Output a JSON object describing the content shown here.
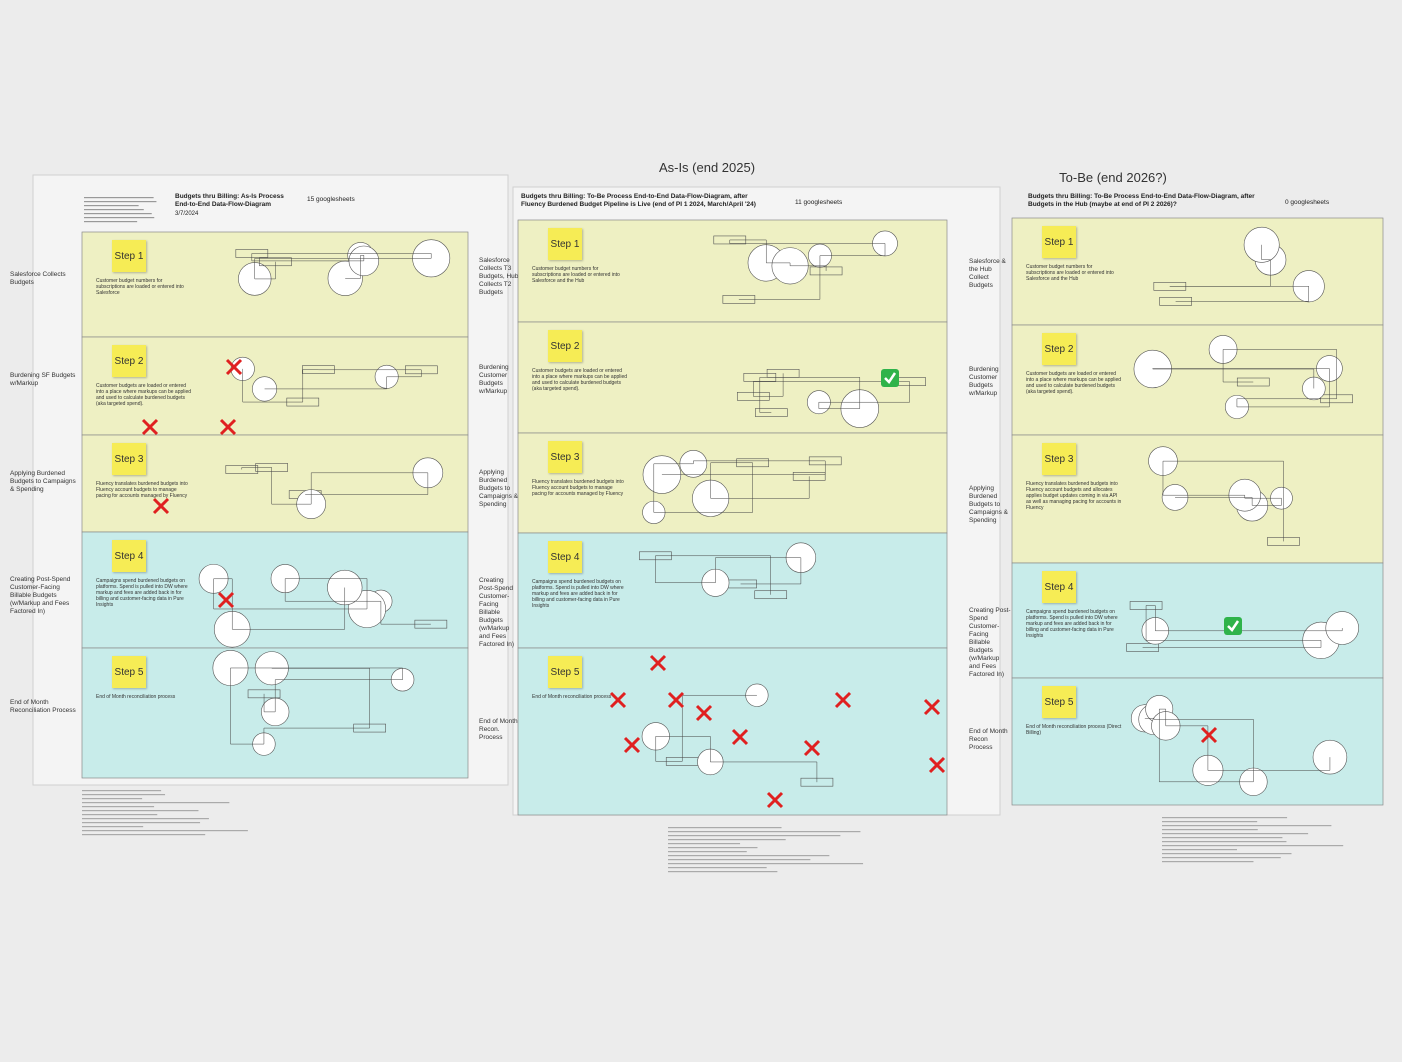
{
  "headings": [
    "As-Is (end 2025)",
    "To-Be (end 2026?)"
  ],
  "panels": [
    {
      "title": "Budgets thru Billing: As-Is Process End-to-End Data-Flow-Diagram",
      "date": "3/7/2024",
      "sheets": "15 googlesheets",
      "row_labels": [
        "Salesforce Collects Budgets",
        "Burdening SF Budgets w/Markup",
        "Applying Burdened Budgets to Campaigns & Spending",
        "Creating Post-Spend Customer-Facing Billable Budgets (w/Markup and Fees Factored In)",
        "End of Month Reconciliation Process"
      ],
      "steps": [
        {
          "label": "Step 1",
          "text": "Customer budget numbers for subscriptions are loaded or entered into Salesforce"
        },
        {
          "label": "Step 2",
          "text": "Customer budgets are loaded or entered into a place where markups can be applied and used to calculate burdened budgets (aka targeted spend)."
        },
        {
          "label": "Step 3",
          "text": "Fluency translates burdened budgets into Fluency account budgets to manage pacing for accounts managed by Fluency"
        },
        {
          "label": "Step 4",
          "text": "Campaigns spend burdened budgets on platforms. Spend is pulled into DW where markup and fees are added back in for billing and customer-facing data in Pure Insights"
        },
        {
          "label": "Step 5",
          "text": "End of Month reconciliation process"
        }
      ]
    },
    {
      "title": "Budgets thru Billing: To-Be Process End-to-End Data-Flow-Diagram, after Fluency Burdened Budget Pipeline is Live (end of PI 1 2024, March/April '24)",
      "sheets": "11 googlesheets",
      "row_labels": [
        "Salesforce Collects T3 Budgets, Hub Collects T2 Budgets",
        "Burdening Customer Budgets w/Markup",
        "Applying Burdened Budgets to Campaigns & Spending",
        "Creating Post-Spend Customer-Facing Billable Budgets (w/Markup and Fees Factored In)",
        "End of Month Recon. Process"
      ],
      "steps": [
        {
          "label": "Step 1",
          "text": "Customer budget numbers for subscriptions are loaded or entered into Salesforce and the Hub"
        },
        {
          "label": "Step 2",
          "text": "Customer budgets are loaded or entered into a place where markups can be applied and used to calculate burdened budgets (aka targeted spend)."
        },
        {
          "label": "Step 3",
          "text": "Fluency translates burdened budgets into Fluency account budgets to manage pacing for accounts managed by Fluency"
        },
        {
          "label": "Step 4",
          "text": "Campaigns spend burdened budgets on platforms. Spend is pulled into DW where markup and fees are added back in for billing and customer-facing data in Pure Insights"
        },
        {
          "label": "Step 5",
          "text": "End of Month reconciliation process"
        }
      ]
    },
    {
      "title": "Budgets thru Billing: To-Be Process End-to-End Data-Flow-Diagram, after Budgets in the Hub (maybe at end of PI 2 2026)?",
      "sheets": "0 googlesheets",
      "row_labels": [
        "Salesforce & the Hub Collect Budgets",
        "Burdening Customer Budgets w/Markup",
        "Applying Burdened Budgets to Campaigns & Spending",
        "Creating Post-Spend Customer-Facing Billable Budgets (w/Markup and Fees Factored In)",
        "End of Month Recon Process"
      ],
      "steps": [
        {
          "label": "Step 1",
          "text": "Customer budget numbers for subscriptions are loaded or entered into Salesforce and the Hub"
        },
        {
          "label": "Step 2",
          "text": "Customer budgets are loaded or entered into a place where markups can be applied and used to calculate burdened budgets (aka targeted spend)."
        },
        {
          "label": "Step 3",
          "text": "Fluency translates burdened budgets into Fluency account budgets and allocates applies budget updates coming in via API as well as managing pacing for accounts in Fluency"
        },
        {
          "label": "Step 4",
          "text": "Campaigns spend burdened budgets on platforms. Spend is pulled into DW where markup and fees are added back in for billing and customer-facing data in Pure Insights"
        },
        {
          "label": "Step 5",
          "text": "End of Month reconciliation process (Direct Billing)"
        }
      ]
    }
  ]
}
